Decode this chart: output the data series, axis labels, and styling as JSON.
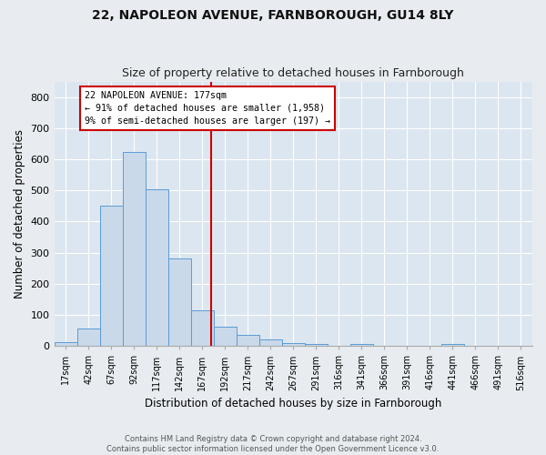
{
  "title": "22, NAPOLEON AVENUE, FARNBOROUGH, GU14 8LY",
  "subtitle": "Size of property relative to detached houses in Farnborough",
  "xlabel": "Distribution of detached houses by size in Farnborough",
  "ylabel": "Number of detached properties",
  "bar_labels": [
    "17sqm",
    "42sqm",
    "67sqm",
    "92sqm",
    "117sqm",
    "142sqm",
    "167sqm",
    "192sqm",
    "217sqm",
    "242sqm",
    "267sqm",
    "291sqm",
    "316sqm",
    "341sqm",
    "366sqm",
    "391sqm",
    "416sqm",
    "441sqm",
    "466sqm",
    "491sqm",
    "516sqm"
  ],
  "bar_values": [
    13,
    57,
    450,
    625,
    505,
    281,
    116,
    63,
    37,
    22,
    10,
    8,
    0,
    8,
    0,
    0,
    0,
    8,
    0,
    0,
    0
  ],
  "bar_color": "#c9d9ea",
  "bar_edge_color": "#5b9bd5",
  "background_color": "#dce6f0",
  "grid_color": "#ffffff",
  "vline_color": "#cc0000",
  "annotation_title": "22 NAPOLEON AVENUE: 177sqm",
  "annotation_line1": "← 91% of detached houses are smaller (1,958)",
  "annotation_line2": "9% of semi-detached houses are larger (197) →",
  "annotation_box_color": "#cc0000",
  "ylim": [
    0,
    850
  ],
  "yticks": [
    0,
    100,
    200,
    300,
    400,
    500,
    600,
    700,
    800
  ],
  "footer_line1": "Contains HM Land Registry data © Crown copyright and database right 2024.",
  "footer_line2": "Contains public sector information licensed under the Open Government Licence v3.0.",
  "figsize": [
    6.0,
    5.0
  ],
  "dpi": 100
}
